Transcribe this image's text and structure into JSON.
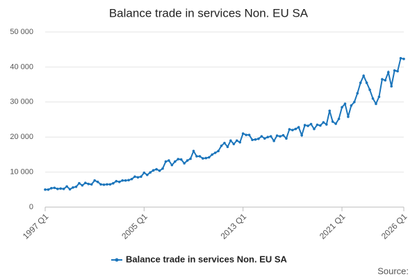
{
  "chart_data": {
    "type": "line",
    "title": "Balance trade in services Non. EU SA",
    "categories": [
      "1997 Q1",
      null,
      null,
      null,
      null,
      null,
      null,
      null,
      null,
      null,
      null,
      null,
      null,
      null,
      null,
      null,
      null,
      null,
      null,
      null,
      null,
      null,
      null,
      null,
      null,
      null,
      null,
      null,
      null,
      null,
      null,
      null,
      "2005 Q1",
      null,
      null,
      null,
      null,
      null,
      null,
      null,
      null,
      null,
      null,
      null,
      null,
      null,
      null,
      null,
      null,
      null,
      null,
      null,
      null,
      null,
      null,
      null,
      null,
      null,
      null,
      null,
      null,
      null,
      null,
      null,
      "2013 Q1",
      null,
      null,
      null,
      null,
      null,
      null,
      null,
      null,
      null,
      null,
      null,
      null,
      null,
      null,
      null,
      null,
      null,
      null,
      null,
      null,
      null,
      null,
      null,
      null,
      null,
      null,
      null,
      null,
      null,
      null,
      null,
      "2021 Q1",
      null,
      null,
      null,
      null,
      null,
      null,
      null,
      null,
      null,
      null,
      null,
      null,
      null,
      null,
      null,
      null,
      null,
      null,
      null,
      "2026 Q1"
    ],
    "series": [
      {
        "name": "Balance trade in services Non. EU SA",
        "color": "#1b75bb",
        "values": [
          5000,
          5000,
          5400,
          5500,
          5200,
          5300,
          5200,
          5900,
          5100,
          5600,
          5800,
          6800,
          6200,
          6900,
          6600,
          6500,
          7600,
          7200,
          6500,
          6400,
          6500,
          6500,
          6800,
          7400,
          7200,
          7600,
          7600,
          7700,
          8000,
          8700,
          8500,
          8700,
          9800,
          9200,
          9900,
          10500,
          10800,
          10400,
          11000,
          13000,
          13300,
          12000,
          13000,
          13700,
          13600,
          12500,
          13300,
          13800,
          16000,
          14500,
          14500,
          13900,
          14000,
          14200,
          15000,
          15500,
          16000,
          17500,
          18300,
          17200,
          19000,
          18000,
          19000,
          18500,
          21000,
          20600,
          20600,
          19200,
          19300,
          19500,
          20200,
          19600,
          20000,
          20200,
          18900,
          20400,
          20200,
          20500,
          19600,
          22200,
          22000,
          22300,
          22800,
          20500,
          23400,
          23200,
          23700,
          22300,
          23500,
          23300,
          24200,
          23600,
          27500,
          24400,
          23800,
          25200,
          28500,
          29500,
          25800,
          29000,
          30000,
          32500,
          35500,
          37500,
          35500,
          33500,
          31000,
          29500,
          31500,
          36500,
          36200,
          38500,
          34500,
          39000,
          38800,
          42500,
          42300
        ]
      }
    ],
    "ylim": [
      0,
      50000
    ],
    "yticks": [
      0,
      {
        "value": 10000,
        "label": "10 000"
      },
      {
        "value": 20000,
        "label": "20 000"
      },
      {
        "value": 30000,
        "label": "30 000"
      },
      {
        "value": 40000,
        "label": "40 000"
      },
      {
        "value": 50000,
        "label": "50 000"
      }
    ],
    "grid": true,
    "source": "Source:"
  }
}
